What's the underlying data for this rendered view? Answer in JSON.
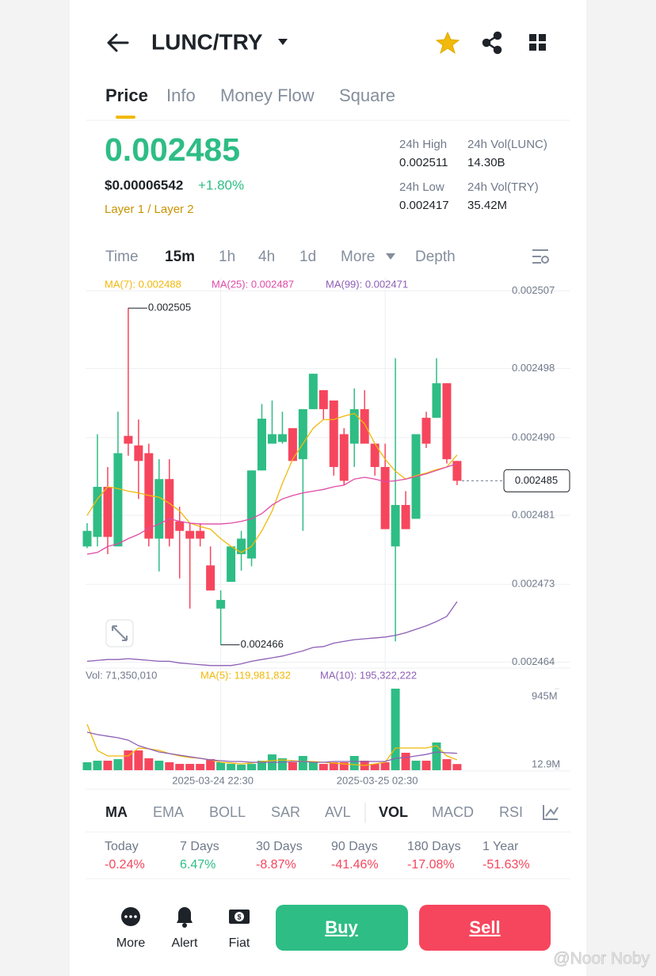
{
  "header": {
    "pair": "LUNC/TRY"
  },
  "tabs": [
    "Price",
    "Info",
    "Money Flow",
    "Square"
  ],
  "price": {
    "last": "0.002485",
    "usd": "$0.00006542",
    "change": "+1.80%",
    "tag": "Layer 1 / Layer 2"
  },
  "stats": [
    {
      "label": "24h High",
      "value": "0.002511"
    },
    {
      "label": "24h Vol(LUNC)",
      "value": "14.30B"
    },
    {
      "label": "24h Low",
      "value": "0.002417"
    },
    {
      "label": "24h Vol(TRY)",
      "value": "35.42M"
    }
  ],
  "intervals": [
    "Time",
    "15m",
    "1h",
    "4h",
    "1d",
    "More",
    "Depth"
  ],
  "chart_data": {
    "type": "candlestick",
    "categories": [
      null,
      null,
      null,
      null,
      null,
      null,
      null,
      null,
      null,
      null,
      null,
      null,
      null,
      "2025-03-24 22:30",
      null,
      null,
      null,
      null,
      null,
      null,
      null,
      null,
      null,
      null,
      null,
      null,
      null,
      null,
      null,
      "2025-03-25 02:30",
      null,
      null,
      null,
      null,
      null,
      null,
      null
    ],
    "open": [
      0.0024774,
      0.0024785,
      0.0024843,
      0.0024774,
      0.0024902,
      0.0024891,
      0.0024882,
      0.0024783,
      0.0024852,
      0.0024803,
      0.0024792,
      0.0024792,
      0.0024752,
      0.0024702,
      0.0024733,
      0.0024765,
      0.002476,
      0.0024862,
      0.0024893,
      0.0024895,
      0.0024911,
      0.0024875,
      0.0024933,
      0.0024955,
      0.0024943,
      0.0024904,
      0.0024893,
      0.0024933,
      0.0024893,
      0.0024866,
      0.0024774,
      0.0024822,
      0.0024806,
      0.0024923,
      0.0024923,
      0.0024963,
      0.0024873
    ],
    "high": [
      0.0024801,
      0.0024904,
      0.0024866,
      0.002493,
      0.002505,
      0.0024921,
      0.0024893,
      0.0024875,
      0.0024875,
      0.002482,
      0.0024801,
      0.0024801,
      0.0024774,
      0.0024723,
      0.0024774,
      0.0024792,
      0.0024862,
      0.0024939,
      0.0024943,
      0.002493,
      0.0024911,
      0.0024933,
      0.0024974,
      0.0024955,
      0.0024943,
      0.0024911,
      0.0024957,
      0.0024955,
      0.0024893,
      0.0024893,
      0.0024992,
      0.0024838,
      0.0024904,
      0.002493,
      0.0024992,
      0.0024963,
      0.0024873
    ],
    "low": [
      0.0024772,
      0.0024774,
      0.0024765,
      0.0024774,
      0.0024879,
      0.0024829,
      0.0024774,
      0.0024745,
      0.0024774,
      0.0024737,
      0.0024702,
      0.0024774,
      0.0024723,
      0.002466,
      0.0024733,
      0.0024746,
      0.0024751,
      0.0024862,
      0.0024893,
      0.0024893,
      0.0024873,
      0.0024792,
      0.0024933,
      0.0024921,
      0.0024856,
      0.0024845,
      0.0024866,
      0.0024893,
      0.0024856,
      0.0024794,
      0.0024664,
      0.0024794,
      0.0024806,
      0.0024888,
      0.0024923,
      0.002487,
      0.0024845
    ],
    "close": [
      0.0024792,
      0.0024843,
      0.0024785,
      0.0024882,
      0.0024893,
      0.0024873,
      0.0024783,
      0.0024852,
      0.0024783,
      0.0024792,
      0.0024783,
      0.0024783,
      0.0024723,
      0.0024712,
      0.0024774,
      0.0024783,
      0.0024862,
      0.0024922,
      0.0024904,
      0.0024904,
      0.0024873,
      0.0024933,
      0.0024974,
      0.0024933,
      0.0024866,
      0.002485,
      0.0024933,
      0.0024893,
      0.0024866,
      0.0024794,
      0.0024822,
      0.0024794,
      0.0024904,
      0.0024893,
      0.0024963,
      0.0024875,
      0.002485
    ],
    "up_color": "#2ebd85",
    "down_color": "#f6465d",
    "ylim": [
      0.0024634,
      0.0025086
    ],
    "yticks": [
      0.002507,
      0.002498,
      {
        "value": 0.00249,
        "label": "0.002490"
      },
      0.002481,
      0.002473,
      0.002464
    ],
    "grid": true,
    "series": [
      {
        "name": "MA(7): 0.002488",
        "color": "#f0b90b",
        "values": [
          0.002481,
          0.0024829,
          0.0024843,
          0.0024841,
          0.0024838,
          0.0024836,
          0.0024833,
          0.0024831,
          0.0024824,
          0.0024815,
          0.0024801,
          0.0024797,
          0.0024794,
          0.0024783,
          0.0024774,
          0.0024767,
          0.0024774,
          0.0024792,
          0.0024815,
          0.0024847,
          0.0024875,
          0.0024893,
          0.0024911,
          0.0024921,
          0.0024921,
          0.0024925,
          0.0024928,
          0.0024916,
          0.0024893,
          0.0024875,
          0.0024861,
          0.0024852,
          0.0024856,
          0.0024859,
          0.0024863,
          0.0024866,
          0.002488
        ]
      },
      {
        "name": "MA(25): 0.002487",
        "color": "#e04aa6",
        "values": [
          0.0024765,
          0.0024767,
          0.0024774,
          0.0024777,
          0.0024783,
          0.0024788,
          0.0024795,
          0.00248,
          0.0024806,
          0.0024803,
          0.0024801,
          0.00248,
          0.00248,
          0.00248,
          0.0024801,
          0.0024803,
          0.0024806,
          0.0024812,
          0.0024822,
          0.0024829,
          0.0024833,
          0.0024836,
          0.0024838,
          0.002484,
          0.0024843,
          0.0024845,
          0.0024852,
          0.0024854,
          0.0024852,
          0.0024849,
          0.002485,
          0.0024852,
          0.0024855,
          0.0024858,
          0.0024862,
          0.0024866,
          0.002487
        ]
      },
      {
        "name": "MA(99): 0.002471",
        "color": "#8e5fb5",
        "values": [
          0.0024641,
          0.0024642,
          0.0024643,
          0.0024643,
          0.0024644,
          0.0024643,
          0.0024642,
          0.0024641,
          0.0024641,
          0.0024639,
          0.0024638,
          0.0024637,
          0.0024636,
          0.0024636,
          0.0024636,
          0.0024638,
          0.0024641,
          0.0024643,
          0.0024645,
          0.0024647,
          0.002465,
          0.0024653,
          0.0024657,
          0.0024658,
          0.0024662,
          0.0024664,
          0.0024666,
          0.0024667,
          0.0024668,
          0.0024669,
          0.0024671,
          0.0024674,
          0.0024678,
          0.0024682,
          0.0024687,
          0.0024693,
          0.002471
        ]
      }
    ],
    "volume": {
      "legend": "Vol: 71,350,010",
      "values": [
        92000000,
        110000000,
        110000000,
        128000000,
        229000000,
        229000000,
        138000000,
        110000000,
        92000000,
        73000000,
        73000000,
        73000000,
        128000000,
        92000000,
        73000000,
        64000000,
        73000000,
        110000000,
        183000000,
        138000000,
        92000000,
        165000000,
        92000000,
        73000000,
        92000000,
        92000000,
        165000000,
        110000000,
        73000000,
        92000000,
        945000000,
        202000000,
        110000000,
        110000000,
        321000000,
        128000000,
        71350010
      ],
      "vlim": [
        0,
        1000000000
      ],
      "vticks": [
        {
          "value": 945000000,
          "label": "945M"
        },
        {
          "value": 12900000,
          "label": "12.9M"
        }
      ],
      "series": [
        {
          "name": "MA(5): 119,981,832",
          "color": "#f0b90b",
          "values": [
            532000000,
            229000000,
            165000000,
            165000000,
            165000000,
            257000000,
            248000000,
            229000000,
            193000000,
            165000000,
            147000000,
            138000000,
            119000000,
            92000000,
            83000000,
            73000000,
            83000000,
            101000000,
            110000000,
            119000000,
            110000000,
            101000000,
            101000000,
            92000000,
            83000000,
            73000000,
            64000000,
            55000000,
            73000000,
            92000000,
            257000000,
            257000000,
            257000000,
            257000000,
            284000000,
            165000000,
            119981832
          ]
        },
        {
          "name": "MA(10): 195,322,222",
          "color": "#8e5fb5",
          "values": [
            440000000,
            413000000,
            394000000,
            376000000,
            348000000,
            284000000,
            248000000,
            211000000,
            193000000,
            174000000,
            156000000,
            138000000,
            119000000,
            110000000,
            101000000,
            101000000,
            92000000,
            92000000,
            92000000,
            92000000,
            101000000,
            101000000,
            92000000,
            92000000,
            101000000,
            101000000,
            101000000,
            101000000,
            101000000,
            101000000,
            138000000,
            147000000,
            165000000,
            183000000,
            211000000,
            202000000,
            195322222
          ]
        }
      ]
    }
  },
  "indicators": [
    "MA",
    "EMA",
    "BOLL",
    "SAR",
    "AVL",
    "VOL",
    "MACD",
    "RSI"
  ],
  "performance": [
    {
      "label": "Today",
      "value": "-0.24%"
    },
    {
      "label": "7 Days",
      "value": "6.47%"
    },
    {
      "label": "30 Days",
      "value": "-8.87%"
    },
    {
      "label": "90 Days",
      "value": "-41.46%"
    },
    {
      "label": "180 Days",
      "value": "-17.08%"
    },
    {
      "label": "1 Year",
      "value": "-51.63%"
    }
  ],
  "actions": [
    "More",
    "Alert",
    "Fiat"
  ],
  "buttons": [
    "Buy",
    "Sell"
  ],
  "watermark": "@Noor Noby"
}
